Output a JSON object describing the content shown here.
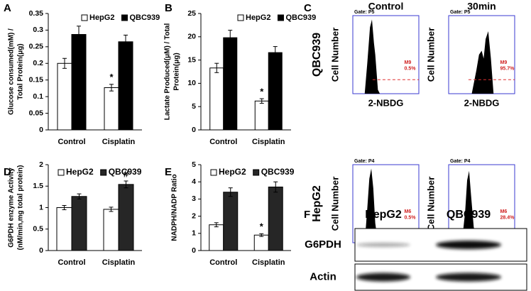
{
  "chart_data": [
    {
      "type": "bar",
      "panel": "A",
      "ylabel": [
        "Glucose consumed(mM) /",
        "Total Protein(μg)"
      ],
      "categories": [
        "Control",
        "Cisplatin"
      ],
      "series": [
        {
          "name": "HepG2",
          "color": "#ffffff",
          "values": [
            0.2,
            0.127
          ],
          "errors": [
            0.015,
            0.01
          ],
          "annotations": [
            null,
            "*"
          ]
        },
        {
          "name": "QBC939",
          "color": "#000000",
          "values": [
            0.287,
            0.265
          ],
          "errors": [
            0.025,
            0.02
          ],
          "annotations": [
            null,
            null
          ]
        }
      ],
      "ylim": [
        0,
        0.35
      ],
      "yticks": [
        0,
        0.05,
        0.1,
        0.15,
        0.2,
        0.25,
        0.3,
        0.35
      ]
    },
    {
      "type": "bar",
      "panel": "B",
      "ylabel": [
        "Lactate Produced(μM) / Total",
        "Protein(μg)"
      ],
      "categories": [
        "Control",
        "Cisplatin"
      ],
      "series": [
        {
          "name": "HepG2",
          "color": "#ffffff",
          "values": [
            13.3,
            6.2
          ],
          "errors": [
            1.0,
            0.5
          ],
          "annotations": [
            null,
            "*"
          ]
        },
        {
          "name": "QBC939",
          "color": "#000000",
          "values": [
            19.8,
            16.6
          ],
          "errors": [
            1.6,
            1.3
          ],
          "annotations": [
            null,
            null
          ]
        }
      ],
      "ylim": [
        0,
        25
      ],
      "yticks": [
        0,
        5,
        10,
        15,
        20,
        25
      ]
    },
    {
      "type": "bar",
      "panel": "D",
      "ylabel": [
        "G6PDH enzyme Activity",
        "(nM/min,mg total protein)"
      ],
      "categories": [
        "Control",
        "Cisplatin"
      ],
      "series": [
        {
          "name": "HepG2",
          "color": "#ffffff",
          "values": [
            1.0,
            0.96
          ],
          "errors": [
            0.05,
            0.05
          ],
          "annotations": [
            null,
            null
          ]
        },
        {
          "name": "QBC939",
          "color": "#262626",
          "values": [
            1.26,
            1.54
          ],
          "errors": [
            0.06,
            0.08
          ],
          "annotations": [
            null,
            "#"
          ]
        }
      ],
      "ylim": [
        0,
        2
      ],
      "yticks": [
        0,
        0.5,
        1,
        1.5,
        2
      ]
    },
    {
      "type": "bar",
      "panel": "E",
      "ylabel": [
        "NADPH/NADP Ratio"
      ],
      "categories": [
        "Control",
        "Cisplatin"
      ],
      "series": [
        {
          "name": "HepG2",
          "color": "#ffffff",
          "values": [
            1.5,
            0.9
          ],
          "errors": [
            0.12,
            0.08
          ],
          "annotations": [
            null,
            "*"
          ]
        },
        {
          "name": "QBC939",
          "color": "#262626",
          "values": [
            3.4,
            3.7
          ],
          "errors": [
            0.25,
            0.3
          ],
          "annotations": [
            null,
            null
          ]
        }
      ],
      "ylim": [
        0,
        5
      ],
      "yticks": [
        0,
        1,
        2,
        3,
        4,
        5
      ]
    }
  ],
  "flow_cytometry": {
    "panel": "C",
    "columns": [
      "Control",
      "30min"
    ],
    "ylabel": "Cell Number",
    "xlabel": "2-NBDG",
    "rows": [
      {
        "label": "QBC939",
        "plots": [
          {
            "gate": "Gate: P5",
            "marker": "M9",
            "percent": "0.5%"
          },
          {
            "gate": "Gate: P5",
            "marker": "M9",
            "percent": "95.7%"
          }
        ]
      },
      {
        "label": "HepG2",
        "plots": [
          {
            "gate": "Gate: P4",
            "marker": "M6",
            "percent": "0.5%"
          },
          {
            "gate": "Gate: P4",
            "marker": "M6",
            "percent": "28.4%"
          }
        ]
      }
    ]
  },
  "western_blot": {
    "panel": "F",
    "lanes": [
      "HepG2",
      "QBC939"
    ],
    "proteins": [
      "G6PDH",
      "Actin"
    ]
  }
}
